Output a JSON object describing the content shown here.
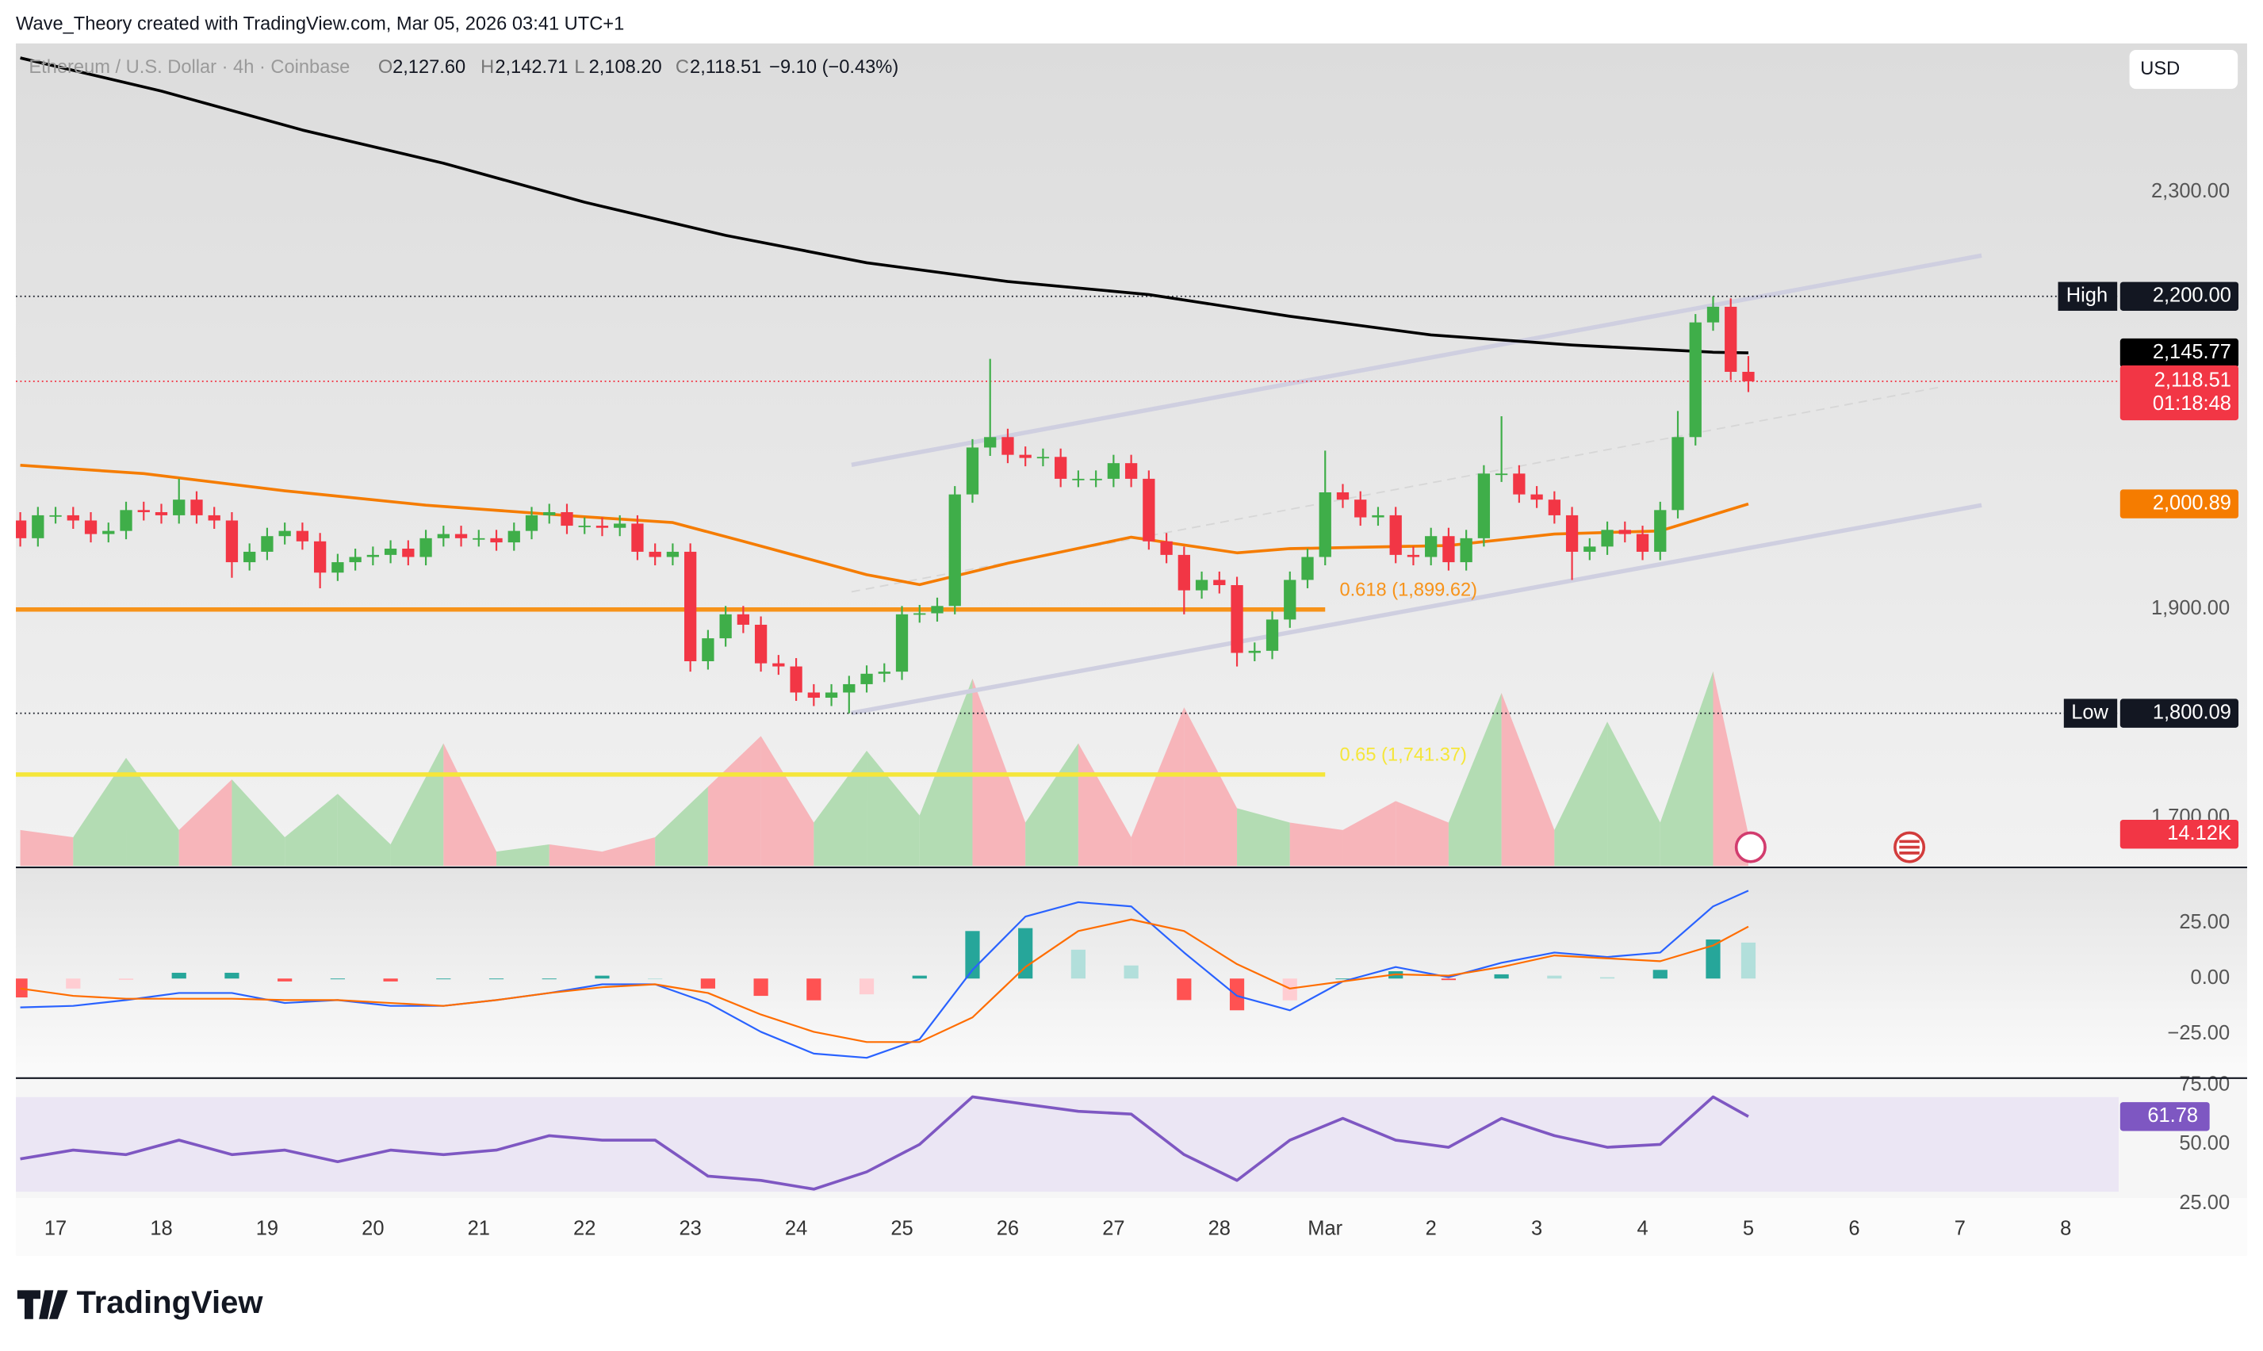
{
  "header": "Wave_Theory created with TradingView.com, Mar 05, 2026 03:41 UTC+1",
  "footer": "TradingView",
  "chart_data": [
    {
      "type": "candlestick",
      "symbol": "Ethereum / U.S. Dollar · 4h · Coinbase",
      "legend": [
        {
          "label": "O",
          "value": "2,127.60"
        },
        {
          "label": "H",
          "value": "2,142.71"
        },
        {
          "label": "L",
          "value": "2,108.20"
        },
        {
          "label": "C",
          "value": "2,118.51"
        }
      ],
      "change": "−9.10 (−0.43%)",
      "currency": "USD",
      "xlim": [
        -0.25,
        119
      ],
      "xticks": [
        {
          "value": 2,
          "label": "17"
        },
        {
          "value": 8,
          "label": "18"
        },
        {
          "value": 14,
          "label": "19"
        },
        {
          "value": 20,
          "label": "20"
        },
        {
          "value": 26,
          "label": "21"
        },
        {
          "value": 32,
          "label": "22"
        },
        {
          "value": 38,
          "label": "23"
        },
        {
          "value": 44,
          "label": "24"
        },
        {
          "value": 50,
          "label": "25"
        },
        {
          "value": 56,
          "label": "26"
        },
        {
          "value": 62,
          "label": "27"
        },
        {
          "value": 68,
          "label": "28"
        },
        {
          "value": 74,
          "label": "Mar"
        },
        {
          "value": 80,
          "label": "2"
        },
        {
          "value": 86,
          "label": "3"
        },
        {
          "value": 92,
          "label": "4"
        },
        {
          "value": 98,
          "label": "5"
        },
        {
          "value": 104,
          "label": "6"
        },
        {
          "value": 110,
          "label": "7"
        },
        {
          "value": 116,
          "label": "8"
        }
      ],
      "ylim": [
        1653.6,
        2442.6
      ],
      "yticks": [
        {
          "value": 1700,
          "label": "1,700.00"
        },
        {
          "value": 1900,
          "label": "1,900.00"
        },
        {
          "value": 2300,
          "label": "2,300.00"
        }
      ],
      "grid": false,
      "up_color": "#3fae49",
      "down_color": "#f23645",
      "open": [
        1985,
        1968,
        1990,
        1990,
        1985,
        1972,
        1975,
        1995,
        1993,
        1990,
        2005,
        1990,
        1985,
        1945,
        1955,
        1970,
        1975,
        1965,
        1935,
        1945,
        1950,
        1952,
        1958,
        1950,
        1968,
        1972,
        1968,
        1968,
        1964,
        1975,
        1990,
        1993,
        1980,
        1980,
        1978,
        1982,
        1955,
        1950,
        1955,
        1850,
        1872,
        1895,
        1885,
        1848,
        1845,
        1820,
        1815,
        1820,
        1828,
        1838,
        1840,
        1895,
        1896,
        1903,
        2010,
        2055,
        2065,
        2048,
        2045,
        2046,
        2025,
        2025,
        2025,
        2040,
        2025,
        1965,
        1952,
        1918,
        1928,
        1923,
        1858,
        1860,
        1890,
        1928,
        1950,
        2012,
        2005,
        1988,
        1990,
        1952,
        1950,
        1970,
        1945,
        1968,
        2030,
        2030,
        2010,
        2005,
        1990,
        1955,
        1960,
        1976,
        1972,
        1955,
        1995,
        2065,
        2175,
        2190,
        2127.6
      ],
      "high": [
        1993,
        1998,
        1998,
        1998,
        1993,
        1983,
        2003,
        2003,
        2001,
        2025,
        2013,
        1998,
        1993,
        1963,
        1978,
        1983,
        1983,
        1973,
        1953,
        1958,
        1960,
        1966,
        1966,
        1976,
        1980,
        1980,
        1976,
        1976,
        1983,
        1998,
        2001,
        2001,
        1988,
        1988,
        1990,
        1990,
        1963,
        1963,
        1963,
        1880,
        1903,
        1903,
        1893,
        1856,
        1853,
        1828,
        1828,
        1836,
        1846,
        1848,
        1903,
        1904,
        1911,
        2018,
        2063,
        2140,
        2073,
        2056,
        2054,
        2054,
        2033,
        2033,
        2048,
        2048,
        2033,
        1973,
        1960,
        1936,
        1936,
        1931,
        1868,
        1898,
        1936,
        1958,
        2052,
        2020,
        2013,
        1998,
        1998,
        1960,
        1978,
        1978,
        1976,
        2038,
        2085,
        2038,
        2018,
        2013,
        1998,
        1968,
        1984,
        1984,
        1980,
        2003,
        2090,
        2183,
        2200,
        2198,
        2142.71
      ],
      "low": [
        1960,
        1960,
        1982,
        1977,
        1964,
        1964,
        1967,
        1985,
        1982,
        1982,
        1982,
        1977,
        1930,
        1937,
        1947,
        1962,
        1957,
        1920,
        1927,
        1937,
        1942,
        1944,
        1942,
        1942,
        1960,
        1960,
        1960,
        1956,
        1956,
        1967,
        1982,
        1972,
        1972,
        1970,
        1970,
        1947,
        1942,
        1942,
        1840,
        1842,
        1864,
        1877,
        1840,
        1837,
        1812,
        1807,
        1807,
        1800.09,
        1820,
        1830,
        1832,
        1887,
        1888,
        1895,
        2002,
        2047,
        2040,
        2037,
        2037,
        2017,
        2017,
        2017,
        2017,
        2017,
        1957,
        1944,
        1895,
        1910,
        1915,
        1845,
        1850,
        1852,
        1882,
        1920,
        1942,
        1997,
        1980,
        1980,
        1944,
        1942,
        1942,
        1937,
        1937,
        1960,
        2022,
        2002,
        1997,
        1982,
        1928,
        1947,
        1952,
        1964,
        1947,
        1947,
        1987,
        2057,
        2167,
        2119.6,
        2108.2
      ],
      "close": [
        1968,
        1990,
        1990,
        1985,
        1972,
        1975,
        1995,
        1993,
        1990,
        2005,
        1990,
        1985,
        1945,
        1955,
        1970,
        1975,
        1965,
        1935,
        1945,
        1950,
        1952,
        1958,
        1950,
        1968,
        1972,
        1968,
        1968,
        1964,
        1975,
        1990,
        1993,
        1980,
        1980,
        1978,
        1982,
        1955,
        1950,
        1955,
        1850,
        1872,
        1895,
        1885,
        1848,
        1845,
        1820,
        1815,
        1820,
        1828,
        1838,
        1840,
        1895,
        1896,
        1903,
        2010,
        2055,
        2065,
        2048,
        2045,
        2046,
        2025,
        2025,
        2025,
        2040,
        2025,
        1965,
        1952,
        1918,
        1928,
        1923,
        1858,
        1860,
        1890,
        1928,
        1950,
        2012,
        2005,
        1988,
        1990,
        1952,
        1950,
        1970,
        1945,
        1968,
        2030,
        2030,
        2010,
        2005,
        1990,
        1955,
        1960,
        1976,
        1972,
        1955,
        1995,
        2065,
        2175,
        2190,
        2127.6,
        2118.51
      ],
      "overlays": [
        {
          "color": "#000000",
          "x": [
            0,
            8,
            16,
            24,
            32,
            40,
            48,
            56,
            64,
            72,
            80,
            88,
            96,
            98
          ],
          "values": [
            2428.7,
            2396.9,
            2359.5,
            2327.7,
            2290.3,
            2258.5,
            2232.2,
            2214.2,
            2201.7,
            2180.9,
            2163,
            2153.3,
            2146.4,
            2145.77
          ],
          "last_value_label": "2,145.77"
        },
        {
          "color": "#f57c00",
          "x": [
            0,
            7,
            15,
            23,
            32,
            37,
            41,
            48,
            51,
            56,
            63,
            69,
            72,
            81,
            87,
            93,
            98
          ],
          "values": [
            2038,
            2030,
            2013.5,
            1999.7,
            1988.6,
            1983,
            1965,
            1933,
            1923.5,
            1944,
            1969,
            1954,
            1958,
            1961,
            1972,
            1975,
            2000.89
          ],
          "last_value_label": "2,000.89"
        }
      ],
      "fib": [
        {
          "value": 1899.62,
          "label": "0.618 (1,899.62)",
          "color": "#f7931a",
          "end": 74
        },
        {
          "value": 1741.37,
          "label": "0.65 (1,741.37)",
          "color": "#f5e63a",
          "end": 74
        }
      ],
      "markers": {
        "high": {
          "label": "High",
          "value": 2200,
          "value_label": "2,200.00"
        },
        "low": {
          "label": "Low",
          "value": 1800.09,
          "value_label": "1,800.09"
        },
        "last": {
          "value": 2118.51,
          "value_label": "2,118.51",
          "countdown": "01:18:48"
        }
      },
      "volume": {
        "x": [
          0,
          3,
          6,
          9,
          12,
          15,
          18,
          21,
          24,
          27,
          30,
          33,
          36,
          39,
          42,
          45,
          48,
          51,
          54,
          57,
          60,
          63,
          66,
          69,
          72,
          75,
          78,
          81,
          84,
          87,
          90,
          93,
          96,
          98
        ],
        "values": [
          16000,
          12800,
          48100,
          16000,
          38500,
          12800,
          32100,
          9600,
          54600,
          6400,
          9600,
          6400,
          12800,
          35300,
          57800,
          19300,
          51300,
          22500,
          83400,
          19300,
          54600,
          12800,
          70600,
          25700,
          19300,
          16000,
          28900,
          19300,
          77000,
          16000,
          64200,
          19300,
          86600,
          14120
        ],
        "ylim": [
          0,
          366000
        ],
        "up_color": "#a8d8a8",
        "down_color": "#f8aab0",
        "last_value_label": "14.12K"
      }
    },
    {
      "type": "macd",
      "xlim": [
        -0.25,
        119
      ],
      "ylim": [
        -44.2,
        49.4
      ],
      "yticks": [
        {
          "value": 25,
          "label": "25.00"
        },
        {
          "value": 0,
          "label": "0.00"
        },
        {
          "value": -25,
          "label": "−25.00"
        }
      ],
      "x": [
        0,
        3,
        6,
        9,
        12,
        15,
        18,
        21,
        24,
        27,
        30,
        33,
        36,
        39,
        42,
        45,
        48,
        51,
        54,
        57,
        60,
        63,
        66,
        69,
        72,
        75,
        78,
        81,
        84,
        87,
        90,
        93,
        96,
        98
      ],
      "histogram": [
        -8.5,
        -4.5,
        -0.6,
        2.6,
        2.6,
        -1.3,
        0,
        -1.3,
        0,
        0,
        0,
        1.3,
        0,
        -4.5,
        -7.8,
        -9.8,
        -7.1,
        1.3,
        21.4,
        22.7,
        13,
        5.9,
        -9.7,
        -14.3,
        -9.8,
        0,
        3.3,
        -0.7,
        1.9,
        1.3,
        0.6,
        3.9,
        17.6,
        16.2
      ],
      "hist_colors": [
        "#26a69a",
        "#b2dfdb",
        "#ff5252",
        "#ffcdd2"
      ],
      "series": [
        {
          "color": "#2962ff",
          "values": [
            -13,
            -12.3,
            -9.7,
            -6.5,
            -6.5,
            -11,
            -9.7,
            -12.3,
            -12.3,
            -9.7,
            -6.5,
            -2.6,
            -2.6,
            -11,
            -24,
            -33.8,
            -35.7,
            -27.3,
            3.9,
            27.9,
            34.4,
            32.5,
            11.7,
            -7.8,
            -14.3,
            -1.3,
            5.2,
            0.6,
            7.1,
            11.7,
            9.7,
            11.7,
            32.5,
            39.6
          ]
        },
        {
          "color": "#ff6d00",
          "values": [
            -4.5,
            -7.8,
            -9.1,
            -9.1,
            -9.1,
            -9.7,
            -9.7,
            -11,
            -12.3,
            -9.7,
            -6.5,
            -3.9,
            -2.6,
            -6.5,
            -16.2,
            -24,
            -28.6,
            -28.6,
            -17.5,
            5.2,
            21.4,
            26.6,
            21.4,
            6.5,
            -4.5,
            -1.3,
            1.9,
            1.3,
            5.2,
            10.4,
            9.1,
            7.8,
            14.9,
            23.4
          ]
        }
      ]
    },
    {
      "type": "line",
      "xlim": [
        -0.25,
        119
      ],
      "ylim": [
        27.4,
        77.4
      ],
      "yticks": [
        {
          "value": 75,
          "label": "75.00"
        },
        {
          "value": 50,
          "label": "50.00"
        },
        {
          "value": 25,
          "label": "25.00"
        }
      ],
      "band": [
        30,
        70
      ],
      "band_color": "#ebe6f4",
      "x": [
        0,
        3,
        6,
        9,
        12,
        15,
        18,
        21,
        24,
        27,
        30,
        33,
        36,
        39,
        42,
        45,
        48,
        51,
        54,
        57,
        60,
        63,
        66,
        69,
        72,
        75,
        78,
        81,
        84,
        87,
        90,
        93,
        96,
        98
      ],
      "series": [
        {
          "color": "#7e57c2",
          "values": [
            43.9,
            47.6,
            45.7,
            51.8,
            45.7,
            47.6,
            42.7,
            47.6,
            45.7,
            47.6,
            53.7,
            51.8,
            51.8,
            36.6,
            34.8,
            31.1,
            38.4,
            50,
            70.1,
            67,
            64,
            62.8,
            45.7,
            34.8,
            51.8,
            61,
            51.8,
            48.8,
            61,
            53.7,
            48.8,
            50,
            70.1,
            61.78
          ]
        }
      ]
    }
  ]
}
